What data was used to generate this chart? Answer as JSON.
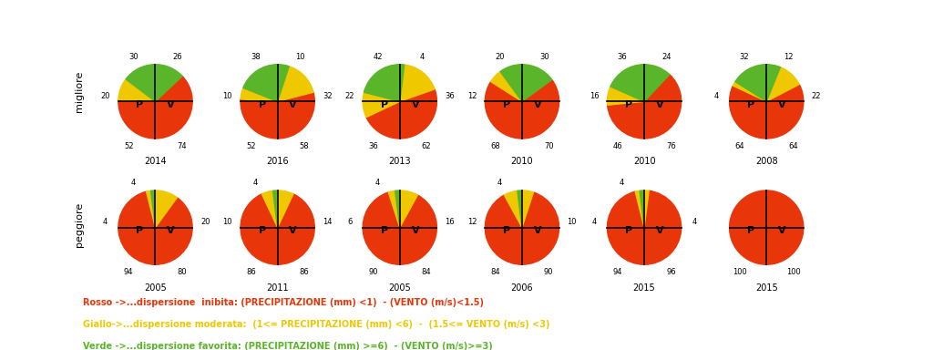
{
  "top_row": {
    "label": "migliore",
    "charts": [
      {
        "year": "2014",
        "P_red": 52,
        "P_yellow": 20,
        "P_green": 30,
        "V_green": 26,
        "V_yellow": 0,
        "V_red": 74
      },
      {
        "year": "2016",
        "P_red": 52,
        "P_yellow": 10,
        "P_green": 38,
        "V_green": 10,
        "V_yellow": 32,
        "V_red": 58
      },
      {
        "year": "2013",
        "P_red": 36,
        "P_yellow": 22,
        "P_green": 42,
        "V_green": 4,
        "V_yellow": 36,
        "V_red": 62
      },
      {
        "year": "2010",
        "P_red": 68,
        "P_yellow": 12,
        "P_green": 20,
        "V_green": 30,
        "V_yellow": 0,
        "V_red": 70
      },
      {
        "year": "2010",
        "P_red": 46,
        "P_yellow": 16,
        "P_green": 36,
        "V_green": 24,
        "V_yellow": 0,
        "V_red": 76
      },
      {
        "year": "2008",
        "P_red": 64,
        "P_yellow": 4,
        "P_green": 32,
        "V_green": 12,
        "V_yellow": 22,
        "V_red": 64
      }
    ]
  },
  "bottom_row": {
    "label": "peggiore",
    "charts": [
      {
        "year": "2005",
        "P_red": 94,
        "P_yellow": 4,
        "P_green": 4,
        "V_green": 0,
        "V_yellow": 20,
        "V_red": 80
      },
      {
        "year": "2011",
        "P_red": 86,
        "P_yellow": 10,
        "P_green": 4,
        "V_green": 0,
        "V_yellow": 14,
        "V_red": 86
      },
      {
        "year": "2005",
        "P_red": 90,
        "P_yellow": 6,
        "P_green": 4,
        "V_green": 0,
        "V_yellow": 16,
        "V_red": 84
      },
      {
        "year": "2006",
        "P_red": 84,
        "P_yellow": 12,
        "P_green": 4,
        "V_green": 0,
        "V_yellow": 10,
        "V_red": 90
      },
      {
        "year": "2015",
        "P_red": 94,
        "P_yellow": 4,
        "P_green": 4,
        "V_green": 0,
        "V_yellow": 4,
        "V_red": 96
      },
      {
        "year": "2015",
        "P_red": 100,
        "P_yellow": 0,
        "P_green": 0,
        "V_green": 0,
        "V_yellow": 0,
        "V_red": 100
      }
    ]
  },
  "colors": {
    "red": "#e8350a",
    "yellow": "#f0c800",
    "green": "#5ab52a"
  },
  "legend": [
    {
      "color": "#e8350a",
      "text": "Rosso ->...dispersione  inibita: (PRECIPITAZIONE (mm) <1)  - (VENTO (m/s)<1.5)"
    },
    {
      "color": "#f0c800",
      "text": "Giallo->...dispersione moderata:  (1<= PRECIPITAZIONE (mm) <6)  -  (1.5<= VENTO (m/s) <3)"
    },
    {
      "color": "#5ab52a",
      "text": "Verde ->...dispersione favorita: (PRECIPITAZIONE (mm) >=6)  - (VENTO (m/s)>=3)"
    }
  ]
}
